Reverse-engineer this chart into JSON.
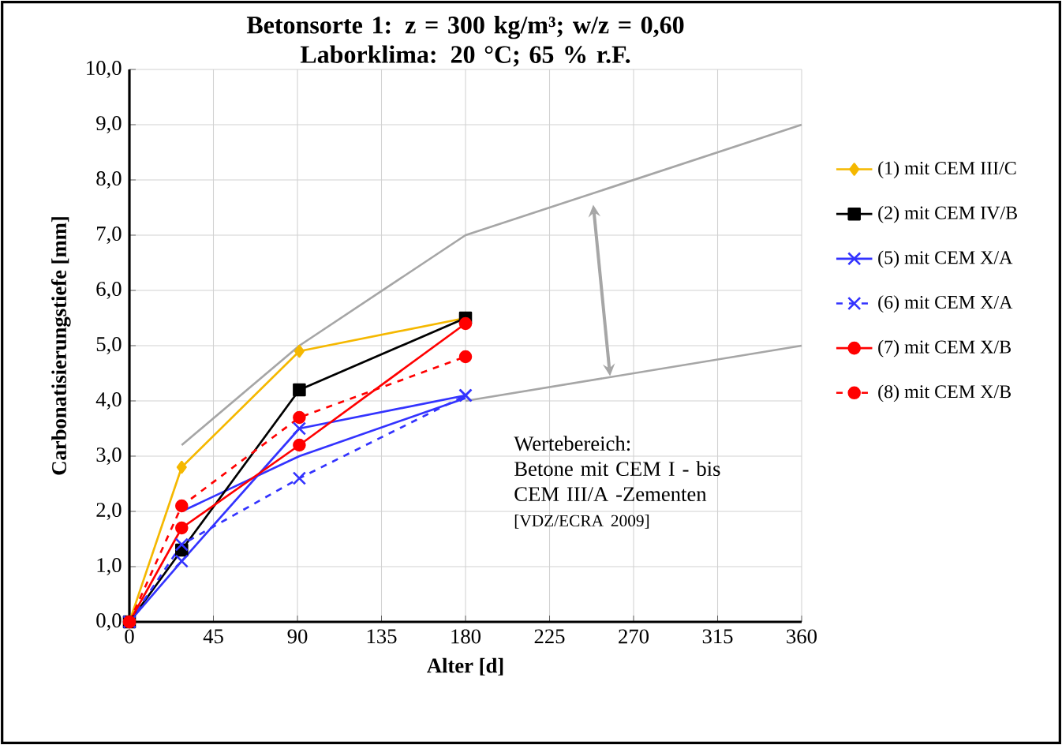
{
  "chart_data": {
    "type": "line",
    "title": "Betonsorte 1: z = 300 kg/m³;  w/z = 0,60\nLaborklima: 20 °C; 65 % r.F.",
    "xlabel": "Alter [d]",
    "ylabel": "Carbonatisierungstiefe [mm]",
    "xlim": [
      0,
      360
    ],
    "xticks": [
      0,
      45,
      90,
      135,
      180,
      225,
      270,
      315,
      360
    ],
    "ylim": [
      0,
      10
    ],
    "yticks": [
      {
        "value": 0,
        "label": "0,0"
      },
      {
        "value": 1,
        "label": "1,0"
      },
      {
        "value": 2,
        "label": "2,0"
      },
      {
        "value": 3,
        "label": "3,0"
      },
      {
        "value": 4,
        "label": "4,0"
      },
      {
        "value": 5,
        "label": "5,0"
      },
      {
        "value": 6,
        "label": "6,0"
      },
      {
        "value": 7,
        "label": "7,0"
      },
      {
        "value": 8,
        "label": "8,0"
      },
      {
        "value": 9,
        "label": "9,0"
      },
      {
        "value": 10,
        "label": "10,0"
      }
    ],
    "grid": true,
    "legend": "right",
    "series": [
      {
        "color": "#a6a6a6",
        "x": [
          28,
          91,
          180,
          360
        ],
        "values": [
          3.2,
          5.0,
          7.0,
          9.0
        ],
        "marker": "none",
        "line_style": "solid"
      },
      {
        "color": "#a6a6a6",
        "x": [
          180,
          360
        ],
        "values": [
          4.0,
          5.0
        ],
        "marker": "none",
        "line_style": "solid"
      },
      {
        "color": "#3333ff",
        "x": [
          28,
          91,
          180
        ],
        "values": [
          2.0,
          3.0,
          4.05
        ],
        "marker": "none",
        "line_style": "solid"
      },
      {
        "name": "(1) mit CEM III/C",
        "color": "#f5b800",
        "x": [
          0,
          28,
          91,
          180
        ],
        "values": [
          0,
          2.8,
          4.9,
          5.5
        ],
        "marker": "diamond",
        "line_style": "solid"
      },
      {
        "name": "(2) mit CEM IV/B",
        "color": "#000000",
        "x": [
          0,
          28,
          91,
          180
        ],
        "values": [
          0,
          1.3,
          4.2,
          5.5
        ],
        "marker": "square",
        "line_style": "solid"
      },
      {
        "name": "(5) mit CEM X/A",
        "color": "#3333ff",
        "x": [
          0,
          28,
          91,
          180
        ],
        "values": [
          0,
          1.1,
          3.5,
          4.1
        ],
        "marker": "cross",
        "line_style": "solid"
      },
      {
        "name": "(6) mit CEM X/A",
        "color": "#3333ff",
        "x": [
          0,
          28,
          91,
          180
        ],
        "values": [
          0,
          1.4,
          2.6,
          4.1
        ],
        "marker": "cross",
        "line_style": "dashed"
      },
      {
        "name": "(7) mit CEM X/B",
        "color": "#ff0000",
        "x": [
          0,
          28,
          91,
          180
        ],
        "values": [
          0,
          1.7,
          3.2,
          5.4
        ],
        "marker": "circle",
        "line_style": "solid"
      },
      {
        "name": "(8) mit CEM X/B",
        "color": "#ff0000",
        "x": [
          0,
          28,
          91,
          180
        ],
        "values": [
          0,
          2.1,
          3.7,
          4.8
        ],
        "marker": "circle",
        "line_style": "dashed"
      }
    ],
    "annotations": [
      "Wertebereich:\nBetone mit CEM I - bis\nCEM III/A -Zementen",
      "[VDZ/ECRA 2009]"
    ]
  }
}
